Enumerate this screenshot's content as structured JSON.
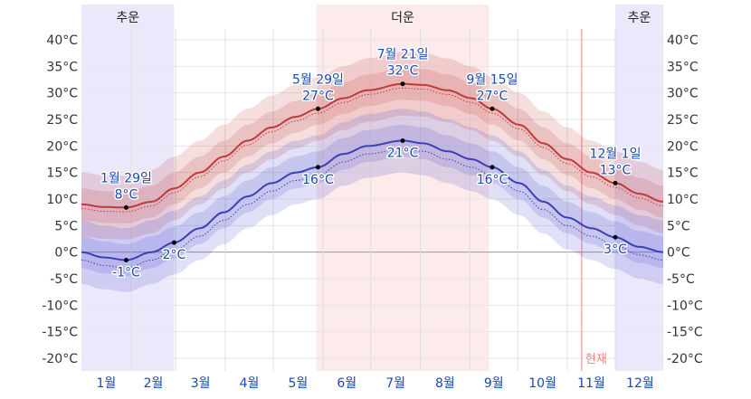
{
  "chart_data": {
    "type": "area",
    "title": "",
    "xlabel": "",
    "ylabel": "",
    "ylim": [
      -20,
      40
    ],
    "y_ticks": [
      "40°C",
      "35°C",
      "30°C",
      "25°C",
      "20°C",
      "15°C",
      "10°C",
      "5°C",
      "0°C",
      "-5°C",
      "-10°C",
      "-15°C",
      "-20°C"
    ],
    "y_tick_values": [
      40,
      35,
      30,
      25,
      20,
      15,
      10,
      5,
      0,
      -5,
      -10,
      -15,
      -20
    ],
    "months": [
      "1월",
      "2월",
      "3월",
      "4월",
      "5월",
      "6월",
      "7월",
      "8월",
      "9월",
      "10월",
      "11월",
      "12월"
    ],
    "seasons": [
      {
        "label": "추운",
        "start_day": 1,
        "end_day": 59,
        "color": "#ebe8fc"
      },
      {
        "label": "더운",
        "start_day": 148,
        "end_day": 256,
        "color": "#fdeaea"
      },
      {
        "label": "추운",
        "start_day": 335,
        "end_day": 365,
        "color": "#ebe8fc"
      }
    ],
    "now_label": "현재",
    "now_day": 314,
    "series": [
      {
        "name": "high",
        "color": "#c0393b",
        "days": [
          1,
          15,
          29,
          45,
          59,
          75,
          90,
          105,
          120,
          135,
          149,
          165,
          180,
          202,
          215,
          230,
          245,
          258,
          275,
          290,
          305,
          320,
          335,
          350,
          365
        ],
        "values": [
          9,
          8.5,
          8.4,
          9.5,
          12,
          15,
          18,
          21,
          23.5,
          25.5,
          27,
          29,
          30.5,
          31.7,
          31.5,
          30.5,
          29,
          27,
          24,
          20.5,
          17.5,
          15,
          13,
          11,
          9.5
        ],
        "band_inner": 3,
        "band_outer": 6
      },
      {
        "name": "low",
        "color": "#3b3fb8",
        "days": [
          1,
          15,
          29,
          45,
          59,
          75,
          90,
          105,
          120,
          135,
          149,
          165,
          180,
          202,
          215,
          230,
          245,
          258,
          275,
          290,
          305,
          320,
          335,
          350,
          365
        ],
        "values": [
          0,
          -1,
          -1.5,
          0,
          1.8,
          4.5,
          7.5,
          10.5,
          13,
          15,
          16,
          18.5,
          20,
          21,
          20.5,
          19,
          17.5,
          16,
          13,
          9.5,
          6.5,
          4.5,
          2.8,
          1,
          0
        ],
        "band_inner": 3,
        "band_outer": 6
      }
    ],
    "annotations": [
      {
        "series": "high",
        "day": 29,
        "date": "1월 29일",
        "value": "8°C",
        "v": 8.4,
        "pos": "above"
      },
      {
        "series": "high",
        "day": 149,
        "date": "5월 29일",
        "value": "27°C",
        "v": 27,
        "pos": "above"
      },
      {
        "series": "high",
        "day": 202,
        "date": "7월 21일",
        "value": "32°C",
        "v": 31.7,
        "pos": "above"
      },
      {
        "series": "high",
        "day": 258,
        "date": "9월 15일",
        "value": "27°C",
        "v": 27,
        "pos": "above"
      },
      {
        "series": "high",
        "day": 335,
        "date": "12월 1일",
        "value": "13°C",
        "v": 13,
        "pos": "above"
      },
      {
        "series": "low",
        "day": 29,
        "date": "",
        "value": "-1°C",
        "v": -1.5,
        "pos": "below"
      },
      {
        "series": "low",
        "day": 59,
        "date": "",
        "value": "2°C",
        "v": 1.8,
        "pos": "below"
      },
      {
        "series": "low",
        "day": 149,
        "date": "",
        "value": "16°C",
        "v": 16,
        "pos": "below"
      },
      {
        "series": "low",
        "day": 202,
        "date": "",
        "value": "21°C",
        "v": 21,
        "pos": "below"
      },
      {
        "series": "low",
        "day": 258,
        "date": "",
        "value": "16°C",
        "v": 16,
        "pos": "below"
      },
      {
        "series": "low",
        "day": 335,
        "date": "",
        "value": "3°C",
        "v": 2.8,
        "pos": "below"
      }
    ],
    "grid": true,
    "legend": "none"
  }
}
